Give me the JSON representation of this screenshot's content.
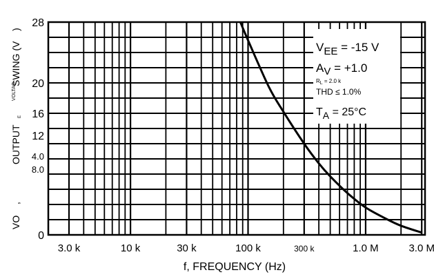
{
  "chart_data": {
    "type": "line",
    "title": "",
    "xlabel": "f, FREQUENCY (Hz)",
    "ylabel": "VO, OUTPUT VOLTAGE SWING (V)",
    "ylabel_parts": {
      "output": "OUTPUT",
      "voltag": "VOLTAG",
      "e": "E",
      "swing": "SWING (V",
      "paren": ")",
      "vo": "VO",
      "comma": ","
    },
    "x_scale": "log",
    "xlim": [
      2000,
      3200000
    ],
    "ylim": [
      0,
      28
    ],
    "grid": true,
    "x_ticks": [
      {
        "value": 3000,
        "label": "3.0 k"
      },
      {
        "value": 10000,
        "label": "10 k"
      },
      {
        "value": 30000,
        "label": "30 k"
      },
      {
        "value": 100000,
        "label": "100 k"
      },
      {
        "value": 300000,
        "label": "300 k"
      },
      {
        "value": 1000000,
        "label": "1.0 M"
      },
      {
        "value": 3000000,
        "label": "3.0 M"
      }
    ],
    "y_ticks": [
      {
        "value": 0,
        "label": "0"
      },
      {
        "value": 16,
        "label": "16"
      },
      {
        "value": 20,
        "label": "20"
      },
      {
        "value": 28,
        "label": "28"
      }
    ],
    "y_ticks_misc": [
      {
        "label": "12"
      },
      {
        "label": "4.0"
      },
      {
        "label": "8.0"
      }
    ],
    "series": [
      {
        "x": [
          86000,
          100000,
          150000,
          200000,
          300000,
          400000,
          500000,
          700000,
          1000000,
          1500000,
          2000000,
          3000000
        ],
        "y": [
          28,
          25.6,
          19.5,
          16.2,
          12.0,
          9.4,
          7.7,
          5.5,
          3.6,
          2.1,
          1.2,
          0.3
        ]
      }
    ],
    "annotations": {
      "vee": "V",
      "vee_sub": "EE",
      "vee_rest": " = -15 V",
      "av": "A",
      "av_sub": "V",
      "av_rest": " = +1.0",
      "rl": "R",
      "rl_sub": "L",
      "rl_rest": " = 2.0 k",
      "thd": "THD ≤ 1.0%",
      "ta": "T",
      "ta_sub": "A",
      "ta_rest": " = 25°C"
    },
    "style": {
      "line_color": "#000000",
      "grid_color": "#000000",
      "background": "#ffffff"
    }
  }
}
